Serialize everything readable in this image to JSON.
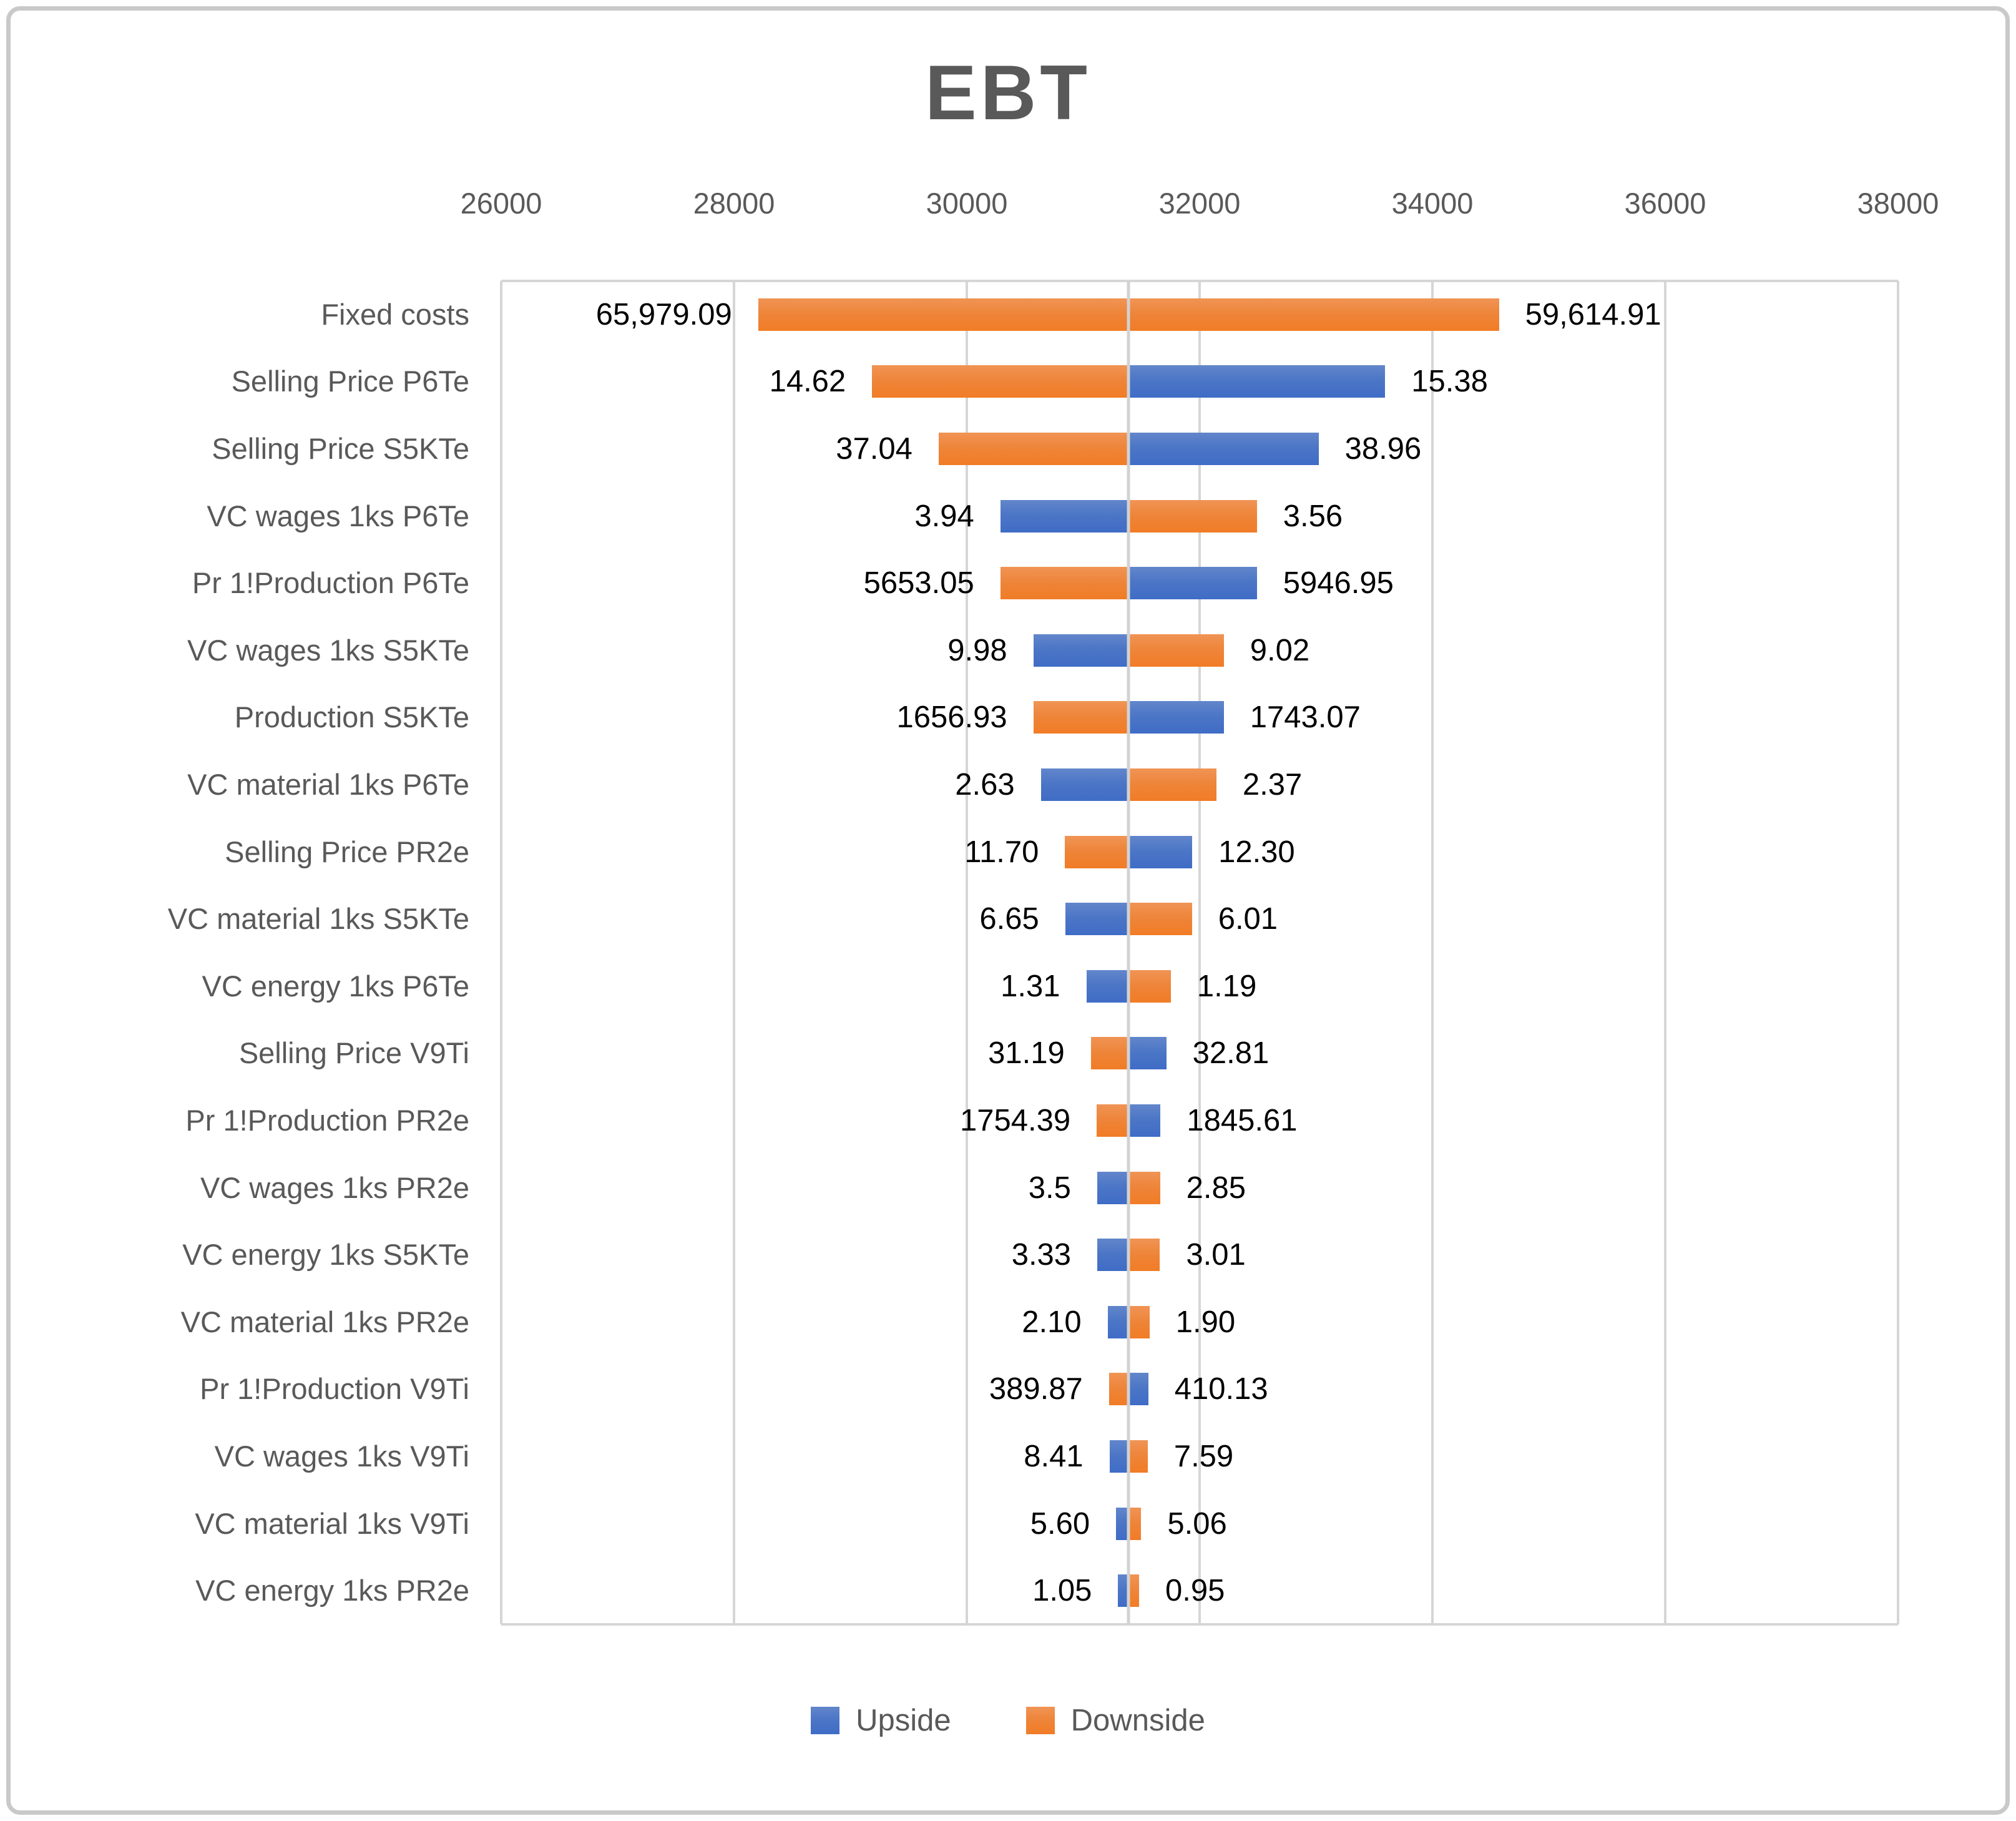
{
  "chart_data": {
    "type": "bar",
    "subtype": "tornado-horizontal",
    "title": "EBT",
    "legend_position": "bottom",
    "grid": true,
    "axis": {
      "orientation": "top",
      "min": 26000,
      "max": 38000,
      "step": 2000,
      "tick_labels": [
        "26000",
        "28000",
        "30000",
        "32000",
        "34000",
        "36000",
        "38000"
      ],
      "pivot": 31390
    },
    "series_colors": {
      "upside": "#4472C4",
      "downside": "#ED7D31"
    },
    "legend": [
      {
        "label": "Upside",
        "series": "upside",
        "color": "#4472C4"
      },
      {
        "label": "Downside",
        "series": "downside",
        "color": "#ED7D31"
      }
    ],
    "rows": [
      {
        "category": "Fixed costs",
        "left_label": "65,979.09",
        "right_label": "59,614.91",
        "low": 28208,
        "high": 34572,
        "left_series": "downside",
        "right_series": "downside"
      },
      {
        "category": "Selling Price P6Te",
        "left_label": "14.62",
        "right_label": "15.38",
        "low": 29186,
        "high": 33594,
        "left_series": "downside",
        "right_series": "upside"
      },
      {
        "category": "Selling Price S5KTe",
        "left_label": "37.04",
        "right_label": "38.96",
        "low": 29758,
        "high": 33022,
        "left_series": "downside",
        "right_series": "upside"
      },
      {
        "category": "VC wages 1ks P6Te",
        "left_label": "3.94",
        "right_label": "3.56",
        "low": 30288,
        "high": 32492,
        "left_series": "upside",
        "right_series": "downside"
      },
      {
        "category": "Pr 1!Production P6Te",
        "left_label": "5653.05",
        "right_label": "5946.95",
        "low": 30288,
        "high": 32492,
        "left_series": "downside",
        "right_series": "upside"
      },
      {
        "category": "VC wages 1ks S5KTe",
        "left_label": "9.98",
        "right_label": "9.02",
        "low": 30572,
        "high": 32208,
        "left_series": "upside",
        "right_series": "downside"
      },
      {
        "category": "Production S5KTe",
        "left_label": "1656.93",
        "right_label": "1743.07",
        "low": 30572,
        "high": 32208,
        "left_series": "downside",
        "right_series": "upside"
      },
      {
        "category": "VC material 1ks P6Te",
        "left_label": "2.63",
        "right_label": "2.37",
        "low": 30636,
        "high": 32144,
        "left_series": "upside",
        "right_series": "downside"
      },
      {
        "category": "Selling Price PR2e",
        "left_label": "11.70",
        "right_label": "12.30",
        "low": 30844,
        "high": 31936,
        "left_series": "downside",
        "right_series": "upside"
      },
      {
        "category": "VC material 1ks S5KTe",
        "left_label": "6.65",
        "right_label": "6.01",
        "low": 30846,
        "high": 31934,
        "left_series": "upside",
        "right_series": "downside"
      },
      {
        "category": "VC energy 1ks P6Te",
        "left_label": "1.31",
        "right_label": "1.19",
        "low": 31027,
        "high": 31753,
        "left_series": "upside",
        "right_series": "downside"
      },
      {
        "category": "Selling Price V9Ti",
        "left_label": "31.19",
        "right_label": "32.81",
        "low": 31066,
        "high": 31714,
        "left_series": "downside",
        "right_series": "upside"
      },
      {
        "category": "Pr 1!Production PR2e",
        "left_label": "1754.39",
        "right_label": "1845.61",
        "low": 31116,
        "high": 31664,
        "left_series": "downside",
        "right_series": "upside"
      },
      {
        "category": "VC wages 1ks PR2e",
        "left_label": "3.5",
        "right_label": "2.85",
        "low": 31120,
        "high": 31660,
        "left_series": "upside",
        "right_series": "downside"
      },
      {
        "category": "VC energy 1ks S5KTe",
        "left_label": "3.33",
        "right_label": "3.01",
        "low": 31121,
        "high": 31659,
        "left_series": "upside",
        "right_series": "downside"
      },
      {
        "category": "VC material 1ks PR2e",
        "left_label": "2.10",
        "right_label": "1.90",
        "low": 31210,
        "high": 31570,
        "left_series": "upside",
        "right_series": "downside"
      },
      {
        "category": "Pr 1!Production V9Ti",
        "left_label": "389.87",
        "right_label": "410.13",
        "low": 31221,
        "high": 31559,
        "left_series": "downside",
        "right_series": "upside"
      },
      {
        "category": "VC wages 1ks V9Ti",
        "left_label": "8.41",
        "right_label": "7.59",
        "low": 31226,
        "high": 31554,
        "left_series": "upside",
        "right_series": "downside"
      },
      {
        "category": "VC material 1ks V9Ti",
        "left_label": "5.60",
        "right_label": "5.06",
        "low": 31282,
        "high": 31498,
        "left_series": "upside",
        "right_series": "downside"
      },
      {
        "category": "VC energy 1ks PR2e",
        "left_label": "1.05",
        "right_label": "0.95",
        "low": 31300,
        "high": 31480,
        "left_series": "upside",
        "right_series": "downside"
      }
    ]
  }
}
